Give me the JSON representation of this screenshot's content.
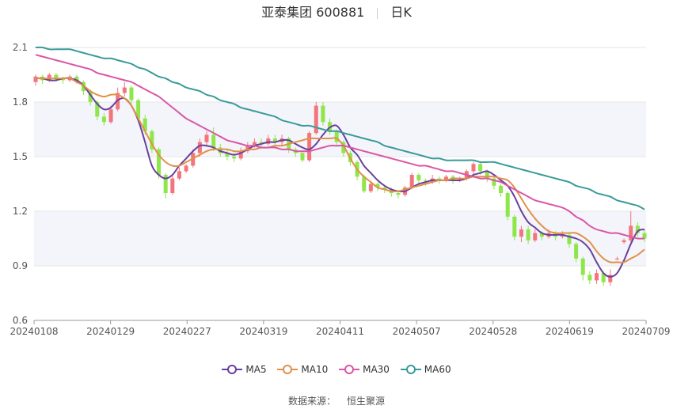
{
  "header": {
    "stock_name": "亚泰集团 600881",
    "period": "日K"
  },
  "source": {
    "label": "数据来源：",
    "value": "恒生聚源"
  },
  "chart_data": {
    "type": "candlestick",
    "ylim": [
      0.6,
      2.1
    ],
    "yticks": [
      "0.6",
      "0.9",
      "1.2",
      "1.5",
      "1.8",
      "2.1"
    ],
    "xticks": [
      "20240108",
      "20240129",
      "20240227",
      "20240319",
      "20240411",
      "20240507",
      "20240528",
      "20240619",
      "20240709"
    ],
    "grid": true,
    "legend_position": "bottom",
    "colors": {
      "up": "#f2757d",
      "down": "#8ee64a",
      "ma5": "#6a3fa0",
      "ma10": "#e0914a",
      "ma30": "#d957a6",
      "ma60": "#3a9a9a"
    },
    "series": [
      {
        "name": "MA5",
        "values": [
          1.93,
          1.93,
          1.92,
          1.92,
          1.93,
          1.93,
          1.92,
          1.89,
          1.84,
          1.79,
          1.76,
          1.77,
          1.81,
          1.82,
          1.78,
          1.7,
          1.58,
          1.45,
          1.4,
          1.38,
          1.4,
          1.45,
          1.49,
          1.53,
          1.56,
          1.56,
          1.55,
          1.53,
          1.52,
          1.51,
          1.52,
          1.54,
          1.56,
          1.57,
          1.58,
          1.58,
          1.59,
          1.59,
          1.57,
          1.55,
          1.54,
          1.57,
          1.62,
          1.66,
          1.67,
          1.62,
          1.55,
          1.51,
          1.45,
          1.41,
          1.37,
          1.34,
          1.32,
          1.31,
          1.31,
          1.33,
          1.35,
          1.36,
          1.37,
          1.37,
          1.37,
          1.37,
          1.37,
          1.38,
          1.4,
          1.41,
          1.42,
          1.4,
          1.37,
          1.34,
          1.28,
          1.2,
          1.14,
          1.11,
          1.08,
          1.07,
          1.07,
          1.07,
          1.06,
          1.05,
          1.03,
          0.99,
          0.92,
          0.86,
          0.84,
          0.86,
          0.93,
          1.02,
          1.09,
          1.1
        ]
      },
      {
        "name": "MA10",
        "values": [
          1.93,
          1.93,
          1.93,
          1.93,
          1.93,
          1.93,
          1.91,
          1.89,
          1.86,
          1.84,
          1.83,
          1.84,
          1.84,
          1.82,
          1.78,
          1.71,
          1.64,
          1.57,
          1.51,
          1.47,
          1.45,
          1.45,
          1.47,
          1.49,
          1.51,
          1.53,
          1.54,
          1.54,
          1.54,
          1.53,
          1.53,
          1.54,
          1.54,
          1.55,
          1.55,
          1.56,
          1.56,
          1.57,
          1.58,
          1.59,
          1.6,
          1.6,
          1.6,
          1.6,
          1.6,
          1.56,
          1.49,
          1.43,
          1.39,
          1.36,
          1.33,
          1.32,
          1.31,
          1.31,
          1.32,
          1.33,
          1.34,
          1.35,
          1.36,
          1.37,
          1.37,
          1.38,
          1.38,
          1.38,
          1.39,
          1.39,
          1.39,
          1.39,
          1.38,
          1.37,
          1.33,
          1.27,
          1.21,
          1.16,
          1.12,
          1.09,
          1.08,
          1.08,
          1.08,
          1.08,
          1.06,
          1.03,
          0.98,
          0.94,
          0.92,
          0.92,
          0.92,
          0.94,
          0.96,
          0.99
        ]
      },
      {
        "name": "MA30",
        "values": [
          2.06,
          2.05,
          2.04,
          2.03,
          2.02,
          2.01,
          2.0,
          1.99,
          1.98,
          1.96,
          1.95,
          1.94,
          1.93,
          1.92,
          1.91,
          1.89,
          1.87,
          1.85,
          1.83,
          1.8,
          1.77,
          1.74,
          1.71,
          1.69,
          1.67,
          1.65,
          1.63,
          1.61,
          1.59,
          1.58,
          1.57,
          1.56,
          1.56,
          1.55,
          1.55,
          1.55,
          1.54,
          1.54,
          1.53,
          1.53,
          1.53,
          1.54,
          1.55,
          1.56,
          1.56,
          1.56,
          1.55,
          1.54,
          1.53,
          1.52,
          1.51,
          1.5,
          1.49,
          1.48,
          1.47,
          1.46,
          1.45,
          1.45,
          1.44,
          1.43,
          1.42,
          1.42,
          1.41,
          1.4,
          1.39,
          1.38,
          1.38,
          1.37,
          1.36,
          1.34,
          1.32,
          1.3,
          1.28,
          1.26,
          1.25,
          1.24,
          1.23,
          1.22,
          1.2,
          1.17,
          1.15,
          1.12,
          1.1,
          1.09,
          1.08,
          1.08,
          1.07,
          1.06,
          1.05,
          1.05
        ]
      },
      {
        "name": "MA60",
        "values": [
          2.1,
          2.1,
          2.09,
          2.09,
          2.09,
          2.09,
          2.08,
          2.07,
          2.06,
          2.05,
          2.04,
          2.04,
          2.03,
          2.02,
          2.01,
          1.99,
          1.98,
          1.96,
          1.94,
          1.93,
          1.91,
          1.9,
          1.88,
          1.87,
          1.86,
          1.84,
          1.83,
          1.81,
          1.8,
          1.79,
          1.77,
          1.76,
          1.75,
          1.74,
          1.73,
          1.72,
          1.7,
          1.69,
          1.68,
          1.67,
          1.67,
          1.66,
          1.65,
          1.64,
          1.64,
          1.63,
          1.62,
          1.61,
          1.6,
          1.59,
          1.58,
          1.56,
          1.55,
          1.54,
          1.53,
          1.52,
          1.51,
          1.5,
          1.49,
          1.49,
          1.48,
          1.48,
          1.48,
          1.48,
          1.48,
          1.47,
          1.47,
          1.47,
          1.46,
          1.45,
          1.44,
          1.43,
          1.42,
          1.41,
          1.4,
          1.39,
          1.38,
          1.37,
          1.36,
          1.34,
          1.33,
          1.32,
          1.3,
          1.29,
          1.28,
          1.26,
          1.25,
          1.24,
          1.23,
          1.21
        ]
      }
    ],
    "candles": [
      [
        1.91,
        1.94,
        1.95,
        1.89
      ],
      [
        1.94,
        1.92,
        1.95,
        1.9
      ],
      [
        1.92,
        1.95,
        1.96,
        1.91
      ],
      [
        1.95,
        1.93,
        1.96,
        1.91
      ],
      [
        1.93,
        1.92,
        1.94,
        1.9
      ],
      [
        1.92,
        1.94,
        1.95,
        1.91
      ],
      [
        1.94,
        1.91,
        1.95,
        1.9
      ],
      [
        1.91,
        1.86,
        1.92,
        1.84
      ],
      [
        1.86,
        1.8,
        1.87,
        1.78
      ],
      [
        1.8,
        1.72,
        1.81,
        1.7
      ],
      [
        1.72,
        1.69,
        1.74,
        1.67
      ],
      [
        1.69,
        1.76,
        1.78,
        1.68
      ],
      [
        1.76,
        1.85,
        1.88,
        1.75
      ],
      [
        1.85,
        1.88,
        1.91,
        1.83
      ],
      [
        1.88,
        1.81,
        1.89,
        1.79
      ],
      [
        1.81,
        1.71,
        1.82,
        1.69
      ],
      [
        1.71,
        1.64,
        1.73,
        1.62
      ],
      [
        1.64,
        1.54,
        1.65,
        1.52
      ],
      [
        1.54,
        1.4,
        1.55,
        1.38
      ],
      [
        1.4,
        1.3,
        1.41,
        1.27
      ],
      [
        1.3,
        1.38,
        1.4,
        1.29
      ],
      [
        1.38,
        1.42,
        1.44,
        1.37
      ],
      [
        1.42,
        1.45,
        1.46,
        1.41
      ],
      [
        1.45,
        1.52,
        1.54,
        1.44
      ],
      [
        1.52,
        1.58,
        1.6,
        1.5
      ],
      [
        1.58,
        1.62,
        1.64,
        1.56
      ],
      [
        1.62,
        1.55,
        1.66,
        1.53
      ],
      [
        1.55,
        1.52,
        1.57,
        1.5
      ],
      [
        1.52,
        1.5,
        1.54,
        1.48
      ],
      [
        1.5,
        1.49,
        1.52,
        1.47
      ],
      [
        1.49,
        1.53,
        1.55,
        1.48
      ],
      [
        1.53,
        1.56,
        1.58,
        1.52
      ],
      [
        1.56,
        1.58,
        1.6,
        1.55
      ],
      [
        1.58,
        1.57,
        1.6,
        1.55
      ],
      [
        1.57,
        1.6,
        1.62,
        1.56
      ],
      [
        1.6,
        1.58,
        1.62,
        1.56
      ],
      [
        1.58,
        1.6,
        1.62,
        1.56
      ],
      [
        1.6,
        1.54,
        1.61,
        1.52
      ],
      [
        1.54,
        1.52,
        1.55,
        1.5
      ],
      [
        1.52,
        1.48,
        1.53,
        1.47
      ],
      [
        1.48,
        1.63,
        1.64,
        1.47
      ],
      [
        1.63,
        1.78,
        1.8,
        1.62
      ],
      [
        1.78,
        1.69,
        1.8,
        1.67
      ],
      [
        1.69,
        1.64,
        1.71,
        1.62
      ],
      [
        1.64,
        1.58,
        1.65,
        1.56
      ],
      [
        1.58,
        1.52,
        1.59,
        1.5
      ],
      [
        1.52,
        1.47,
        1.53,
        1.45
      ],
      [
        1.47,
        1.39,
        1.48,
        1.37
      ],
      [
        1.39,
        1.31,
        1.4,
        1.3
      ],
      [
        1.31,
        1.35,
        1.36,
        1.3
      ],
      [
        1.35,
        1.33,
        1.36,
        1.31
      ],
      [
        1.33,
        1.32,
        1.34,
        1.3
      ],
      [
        1.32,
        1.3,
        1.33,
        1.28
      ],
      [
        1.3,
        1.29,
        1.31,
        1.27
      ],
      [
        1.29,
        1.33,
        1.34,
        1.28
      ],
      [
        1.33,
        1.4,
        1.41,
        1.32
      ],
      [
        1.4,
        1.37,
        1.41,
        1.35
      ],
      [
        1.37,
        1.36,
        1.38,
        1.34
      ],
      [
        1.36,
        1.38,
        1.4,
        1.35
      ],
      [
        1.38,
        1.37,
        1.39,
        1.35
      ],
      [
        1.37,
        1.39,
        1.4,
        1.36
      ],
      [
        1.39,
        1.37,
        1.4,
        1.35
      ],
      [
        1.37,
        1.38,
        1.39,
        1.36
      ],
      [
        1.38,
        1.42,
        1.43,
        1.37
      ],
      [
        1.42,
        1.46,
        1.47,
        1.4
      ],
      [
        1.46,
        1.42,
        1.47,
        1.4
      ],
      [
        1.42,
        1.38,
        1.43,
        1.36
      ],
      [
        1.38,
        1.34,
        1.39,
        1.32
      ],
      [
        1.34,
        1.3,
        1.35,
        1.28
      ],
      [
        1.3,
        1.17,
        1.31,
        1.15
      ],
      [
        1.17,
        1.06,
        1.18,
        1.04
      ],
      [
        1.06,
        1.1,
        1.12,
        1.03
      ],
      [
        1.1,
        1.04,
        1.12,
        1.02
      ],
      [
        1.04,
        1.08,
        1.1,
        1.03
      ],
      [
        1.08,
        1.06,
        1.09,
        1.04
      ],
      [
        1.06,
        1.08,
        1.1,
        1.05
      ],
      [
        1.08,
        1.06,
        1.09,
        1.04
      ],
      [
        1.06,
        1.07,
        1.09,
        1.05
      ],
      [
        1.07,
        1.02,
        1.08,
        1.0
      ],
      [
        1.02,
        0.94,
        1.03,
        0.92
      ],
      [
        0.94,
        0.85,
        0.95,
        0.82
      ],
      [
        0.85,
        0.82,
        0.87,
        0.8
      ],
      [
        0.82,
        0.86,
        0.88,
        0.8
      ],
      [
        0.86,
        0.81,
        0.87,
        0.79
      ],
      [
        0.81,
        0.85,
        0.88,
        0.79
      ],
      [
        0.94,
        0.94,
        0.95,
        0.93
      ],
      [
        1.03,
        1.04,
        1.05,
        1.02
      ],
      [
        1.04,
        1.12,
        1.2,
        1.03
      ],
      [
        1.12,
        1.08,
        1.14,
        1.06
      ],
      [
        1.08,
        1.05,
        1.1,
        1.03
      ]
    ]
  }
}
